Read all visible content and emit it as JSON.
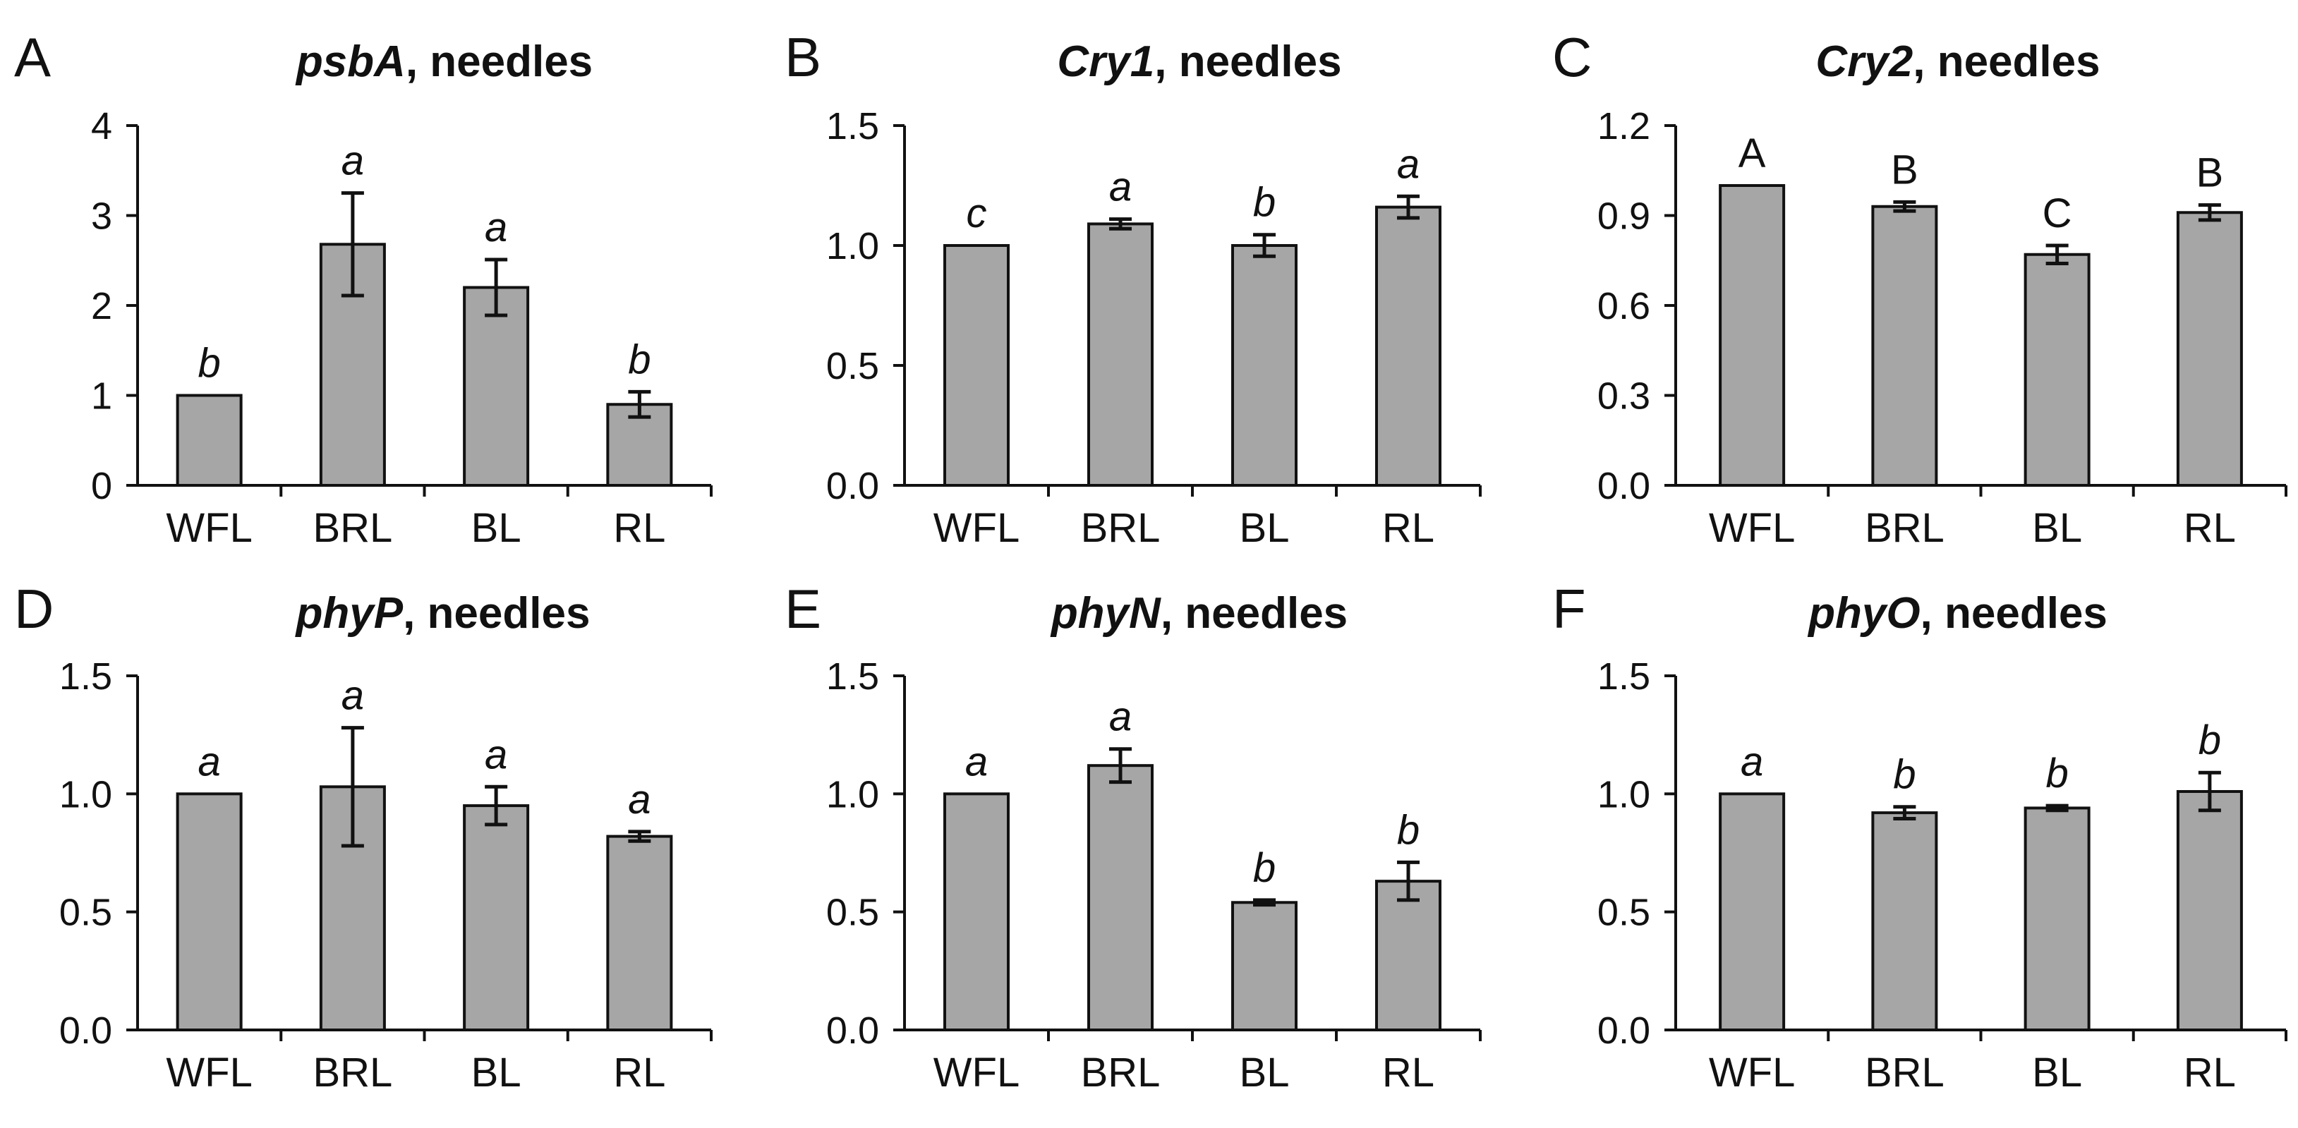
{
  "figure": {
    "panels": [
      {
        "letter": "A",
        "title_gene": "psbA",
        "title_rest": ", needles",
        "chart_data": {
          "type": "bar",
          "title": "psbA, needles",
          "categories": [
            "WFL",
            "BRL",
            "BL",
            "RL"
          ],
          "values": [
            1.0,
            2.68,
            2.2,
            0.9
          ],
          "errors": [
            0.0,
            0.57,
            0.31,
            0.14
          ],
          "significance": [
            "b",
            "a",
            "a",
            "b"
          ],
          "significance_style": "italic",
          "ylim": [
            0,
            4
          ],
          "yticks": [
            "0",
            "1",
            "2",
            "3",
            "4"
          ],
          "xlabel": "",
          "ylabel": ""
        }
      },
      {
        "letter": "B",
        "title_gene": "Cry1",
        "title_rest": ", needles",
        "chart_data": {
          "type": "bar",
          "title": "Cry1, needles",
          "categories": [
            "WFL",
            "BRL",
            "BL",
            "RL"
          ],
          "values": [
            1.0,
            1.09,
            1.0,
            1.16
          ],
          "errors": [
            0.0,
            0.02,
            0.045,
            0.045
          ],
          "significance": [
            "c",
            "a",
            "b",
            "a"
          ],
          "significance_style": "italic",
          "ylim": [
            0,
            1.5
          ],
          "yticks": [
            "0.0",
            "0.5",
            "1.0",
            "1.5"
          ],
          "xlabel": "",
          "ylabel": ""
        }
      },
      {
        "letter": "C",
        "title_gene": "Cry2",
        "title_rest": ", needles",
        "chart_data": {
          "type": "bar",
          "title": "Cry2, needles",
          "categories": [
            "WFL",
            "BRL",
            "BL",
            "RL"
          ],
          "values": [
            1.0,
            0.93,
            0.77,
            0.91
          ],
          "errors": [
            0.0,
            0.015,
            0.03,
            0.025
          ],
          "significance": [
            "A",
            "B",
            "C",
            "B"
          ],
          "significance_style": "normal",
          "ylim": [
            0,
            1.2
          ],
          "yticks": [
            "0.0",
            "0.3",
            "0.6",
            "0.9",
            "1.2"
          ],
          "xlabel": "",
          "ylabel": ""
        }
      },
      {
        "letter": "D",
        "title_gene": "phyP",
        "title_rest": ", needles",
        "chart_data": {
          "type": "bar",
          "title": "phyP, needles",
          "categories": [
            "WFL",
            "BRL",
            "BL",
            "RL"
          ],
          "values": [
            1.0,
            1.03,
            0.95,
            0.82
          ],
          "errors": [
            0.0,
            0.25,
            0.08,
            0.02
          ],
          "significance": [
            "a",
            "a",
            "a",
            "a"
          ],
          "significance_style": "italic",
          "ylim": [
            0,
            1.5
          ],
          "yticks": [
            "0.0",
            "0.5",
            "1.0",
            "1.5"
          ],
          "xlabel": "",
          "ylabel": ""
        }
      },
      {
        "letter": "E",
        "title_gene": "phyN",
        "title_rest": ", needles",
        "chart_data": {
          "type": "bar",
          "title": "phyN, needles",
          "categories": [
            "WFL",
            "BRL",
            "BL",
            "RL"
          ],
          "values": [
            1.0,
            1.12,
            0.54,
            0.63
          ],
          "errors": [
            0.0,
            0.07,
            0.01,
            0.08
          ],
          "significance": [
            "a",
            "a",
            "b",
            "b"
          ],
          "significance_style": "italic",
          "ylim": [
            0,
            1.5
          ],
          "yticks": [
            "0.0",
            "0.5",
            "1.0",
            "1.5"
          ],
          "xlabel": "",
          "ylabel": ""
        }
      },
      {
        "letter": "F",
        "title_gene": "phyO",
        "title_rest": ", needles",
        "chart_data": {
          "type": "bar",
          "title": "phyO, needles",
          "categories": [
            "WFL",
            "BRL",
            "BL",
            "RL"
          ],
          "values": [
            1.0,
            0.92,
            0.94,
            1.01
          ],
          "errors": [
            0.0,
            0.025,
            0.01,
            0.08
          ],
          "significance": [
            "a",
            "b",
            "b",
            "b"
          ],
          "significance_style": "italic",
          "ylim": [
            0,
            1.5
          ],
          "yticks": [
            "0.0",
            "0.5",
            "1.0",
            "1.5"
          ],
          "xlabel": "",
          "ylabel": ""
        }
      }
    ]
  }
}
